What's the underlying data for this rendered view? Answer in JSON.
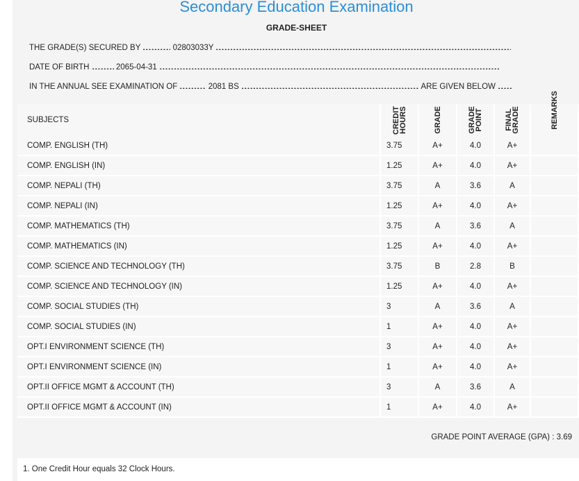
{
  "header": {
    "title": "Secondary Education Examination",
    "subtitle": "GRADE-SHEET"
  },
  "info": {
    "secured_label": "THE GRADE(S) SECURED BY",
    "symbol_no": "02803033Y",
    "dob_label": "DATE OF BIRTH",
    "dob": "2065-04-31",
    "exam_label": "IN THE ANNUAL SEE EXAMINATION OF",
    "exam_year": "2081 BS",
    "given_label": "ARE GIVEN BELOW"
  },
  "table": {
    "columns": [
      "SUBJECTS",
      [
        "CREDIT",
        "HOURS"
      ],
      "GRADE",
      [
        "GRADE",
        "POINT"
      ],
      [
        "FINAL",
        "GRADE"
      ],
      "REMARKS"
    ],
    "rows": [
      [
        "COMP. ENGLISH (TH)",
        "3.75",
        "A+",
        "4.0",
        "A+"
      ],
      [
        "COMP. ENGLISH (IN)",
        "1.25",
        "A+",
        "4.0",
        "A+"
      ],
      [
        "COMP. NEPALI (TH)",
        "3.75",
        "A",
        "3.6",
        "A"
      ],
      [
        "COMP. NEPALI (IN)",
        "1.25",
        "A+",
        "4.0",
        "A+"
      ],
      [
        "COMP. MATHEMATICS (TH)",
        "3.75",
        "A",
        "3.6",
        "A"
      ],
      [
        "COMP. MATHEMATICS (IN)",
        "1.25",
        "A+",
        "4.0",
        "A+"
      ],
      [
        "COMP. SCIENCE AND TECHNOLOGY (TH)",
        "3.75",
        "B",
        "2.8",
        "B"
      ],
      [
        "COMP. SCIENCE AND TECHNOLOGY (IN)",
        "1.25",
        "A+",
        "4.0",
        "A+"
      ],
      [
        "COMP. SOCIAL STUDIES (TH)",
        "3",
        "A",
        "3.6",
        "A"
      ],
      [
        "COMP. SOCIAL STUDIES (IN)",
        "1",
        "A+",
        "4.0",
        "A+"
      ],
      [
        "OPT.I ENVIRONMENT SCIENCE (TH)",
        "3",
        "A+",
        "4.0",
        "A+"
      ],
      [
        "OPT.I ENVIRONMENT SCIENCE (IN)",
        "1",
        "A+",
        "4.0",
        "A+"
      ],
      [
        "OPT.II OFFICE MGMT & ACCOUNT (TH)",
        "3",
        "A",
        "3.6",
        "A"
      ],
      [
        "OPT.II OFFICE MGMT & ACCOUNT (IN)",
        "1",
        "A+",
        "4.0",
        "A+"
      ]
    ]
  },
  "gpa": {
    "label": "GRADE POINT AVERAGE (GPA) :",
    "value": "3.69"
  },
  "note": "1. One Credit Hour equals 32 Clock Hours."
}
